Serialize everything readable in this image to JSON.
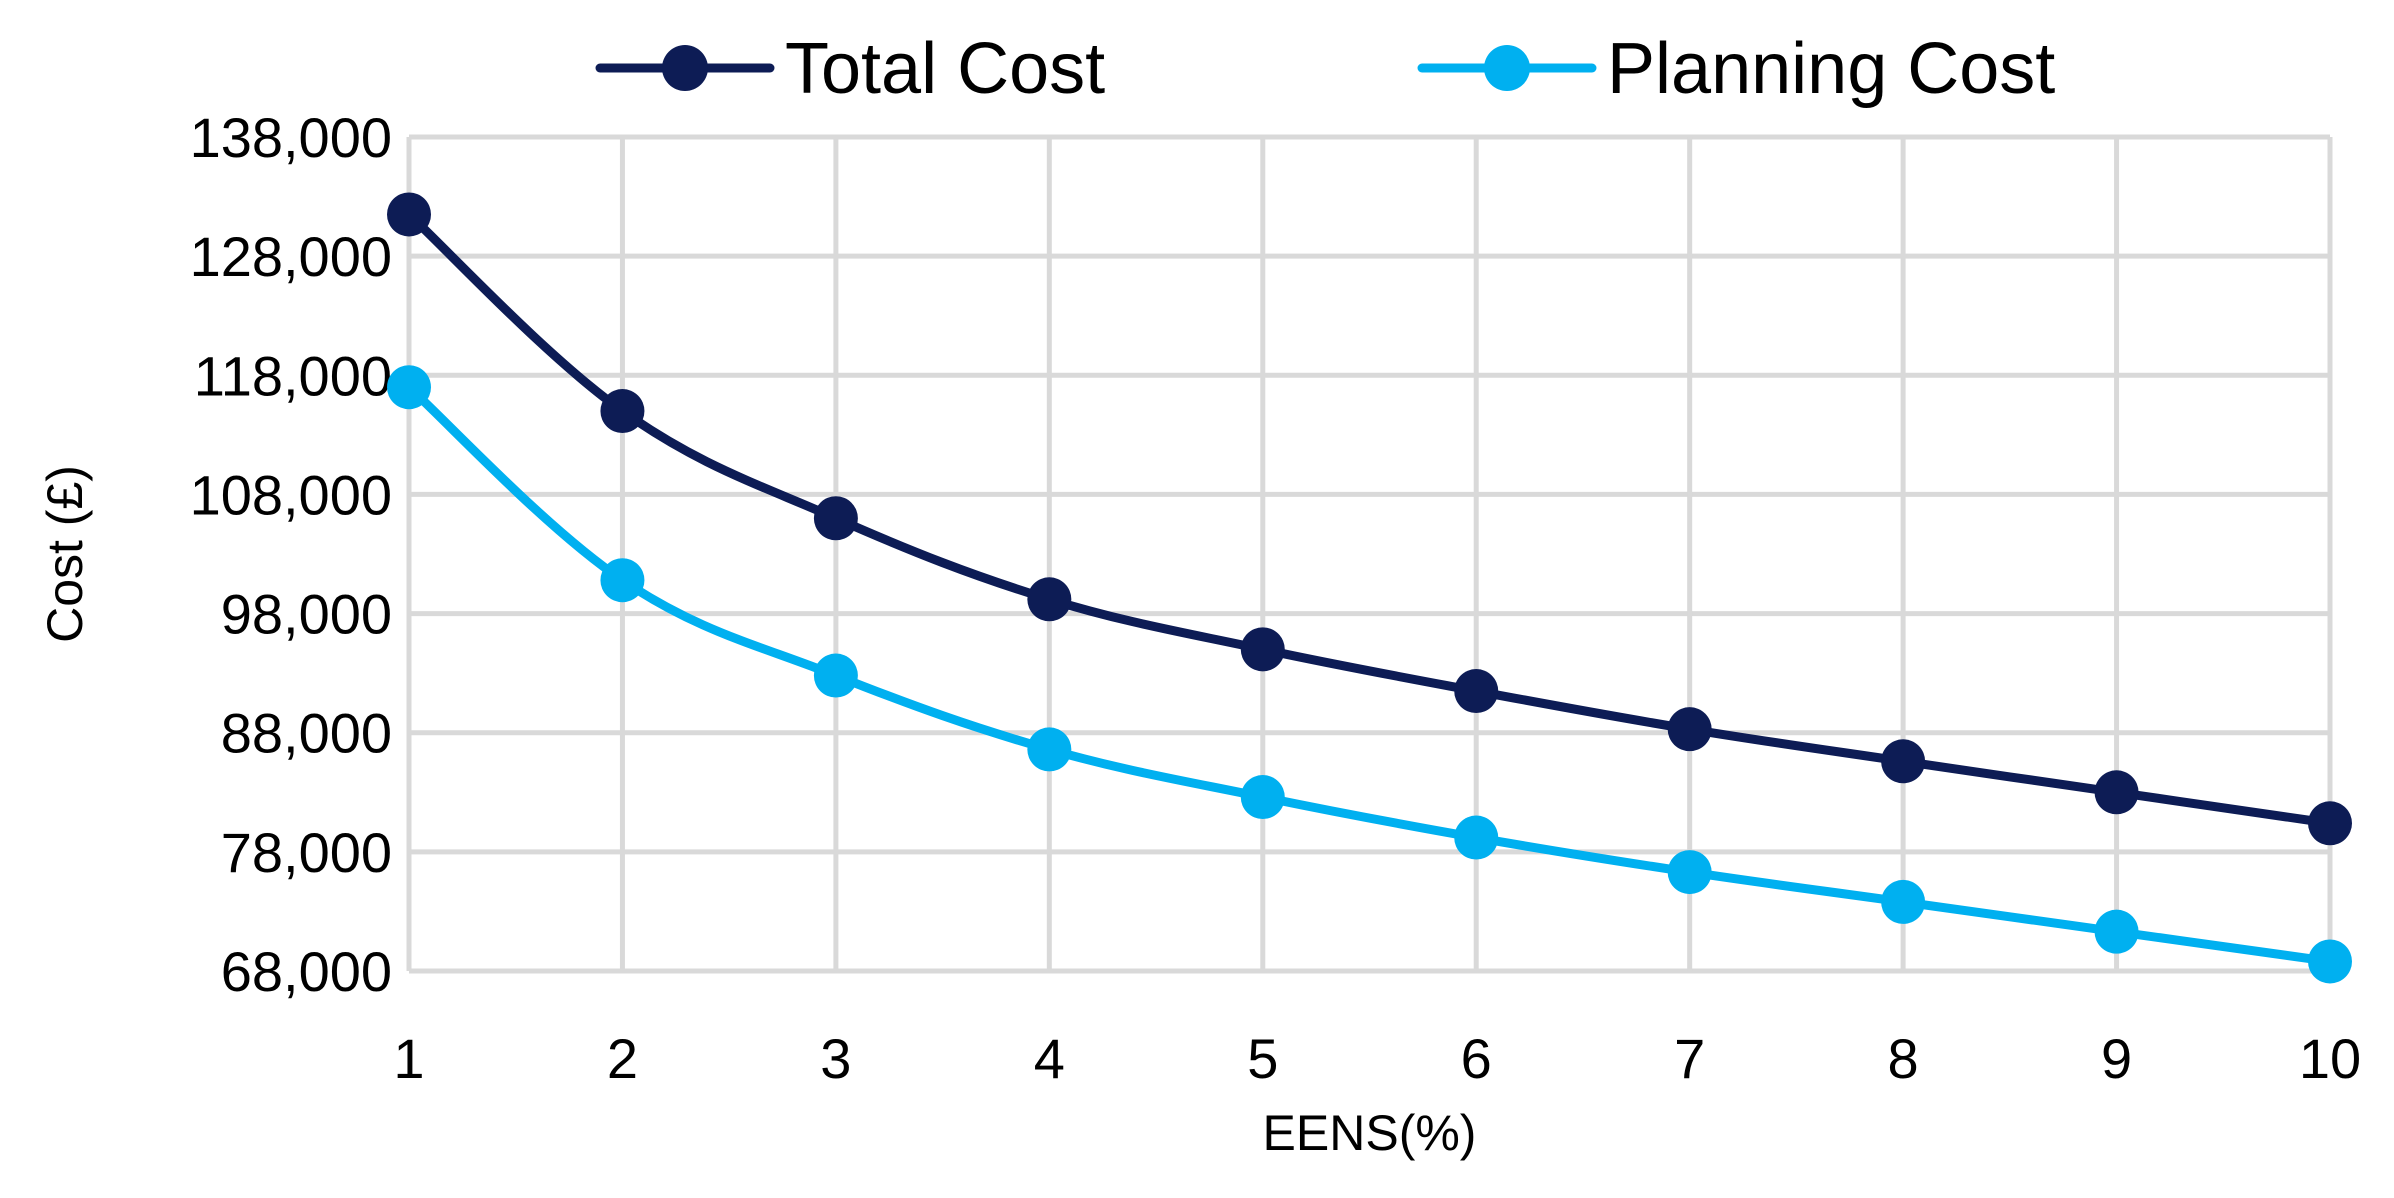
{
  "chart_data": {
    "type": "line",
    "title": "",
    "xlabel": "EENS(%)",
    "ylabel": "Cost (£)",
    "x": [
      1,
      2,
      3,
      4,
      5,
      6,
      7,
      8,
      9,
      10
    ],
    "x_tick_labels": [
      "1",
      "2",
      "3",
      "4",
      "5",
      "6",
      "7",
      "8",
      "9",
      "10"
    ],
    "y_tick_labels": [
      "68,000",
      "78,000",
      "88,000",
      "98,000",
      "108,000",
      "118,000",
      "128,000",
      "138,000"
    ],
    "y_ticks": [
      68000,
      78000,
      88000,
      98000,
      108000,
      118000,
      128000,
      138000
    ],
    "xlim": [
      1,
      10
    ],
    "ylim": [
      68000,
      138000
    ],
    "grid": true,
    "legend_position": "top-center",
    "series": [
      {
        "name": "Total Cost",
        "color": "#0d1c55",
        "values": [
          131500,
          115000,
          106000,
          99200,
          95000,
          91500,
          88300,
          85600,
          83000,
          80400
        ]
      },
      {
        "name": "Planning Cost",
        "color": "#00b0f0",
        "values": [
          117000,
          100800,
          92800,
          86600,
          82600,
          79200,
          76300,
          73800,
          71300,
          68800
        ]
      }
    ]
  }
}
